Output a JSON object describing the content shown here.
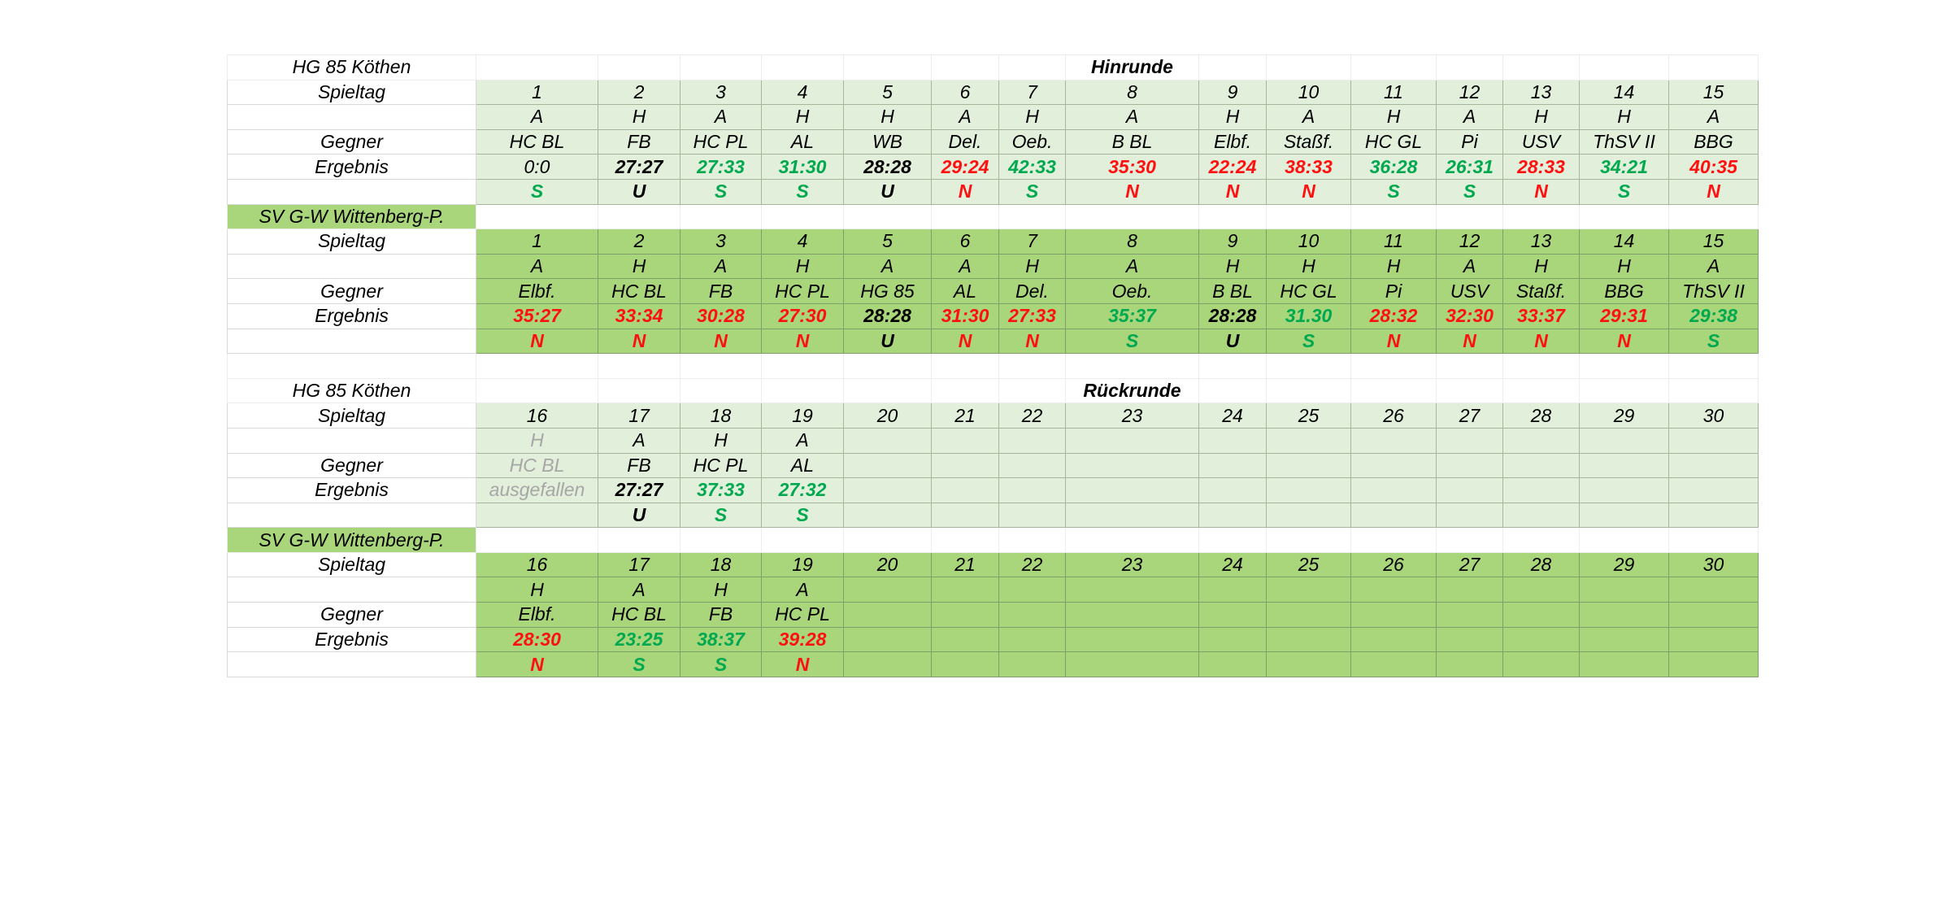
{
  "colors": {
    "light_green": "#e2efda",
    "dark_green": "#a9d67a",
    "win": "#00a84f",
    "loss": "#ff1010",
    "grey": "#a6a6a6"
  },
  "hinrunde": {
    "title": "Hinrunde",
    "team1": {
      "name": "HG 85 Köthen",
      "row_labels": {
        "spieltag": "Spieltag",
        "gegner": "Gegner",
        "ergebnis": "Ergebnis"
      },
      "spieltag": [
        "1",
        "2",
        "3",
        "4",
        "5",
        "6",
        "7",
        "8",
        "9",
        "10",
        "11",
        "12",
        "13",
        "14",
        "15"
      ],
      "ha": [
        "A",
        "H",
        "A",
        "H",
        "H",
        "A",
        "H",
        "A",
        "H",
        "A",
        "H",
        "A",
        "H",
        "H",
        "A"
      ],
      "gegner": [
        "HC BL",
        "FB",
        "HC PL",
        "AL",
        "WB",
        "Del.",
        "Oeb.",
        "B BL",
        "Elbf.",
        "Staßf.",
        "HC GL",
        "Pi",
        "USV",
        "ThSV II",
        "BBG"
      ],
      "ergebnis": [
        "0:0",
        "27:27",
        "27:33",
        "31:30",
        "28:28",
        "29:24",
        "42:33",
        "35:30",
        "22:24",
        "38:33",
        "36:28",
        "26:31",
        "28:33",
        "34:21",
        "40:35"
      ],
      "wertung": [
        "S",
        "U",
        "S",
        "S",
        "U",
        "N",
        "S",
        "N",
        "N",
        "N",
        "S",
        "S",
        "N",
        "S",
        "N"
      ]
    },
    "team2": {
      "name": "SV G-W Wittenberg-P.",
      "row_labels": {
        "spieltag": "Spieltag",
        "gegner": "Gegner",
        "ergebnis": "Ergebnis"
      },
      "spieltag": [
        "1",
        "2",
        "3",
        "4",
        "5",
        "6",
        "7",
        "8",
        "9",
        "10",
        "11",
        "12",
        "13",
        "14",
        "15"
      ],
      "ha": [
        "A",
        "H",
        "A",
        "H",
        "A",
        "A",
        "H",
        "A",
        "H",
        "H",
        "H",
        "A",
        "H",
        "H",
        "A"
      ],
      "gegner": [
        "Elbf.",
        "HC BL",
        "FB",
        "HC PL",
        "HG 85",
        "AL",
        "Del.",
        "Oeb.",
        "B BL",
        "HC GL",
        "Pi",
        "USV",
        "Staßf.",
        "BBG",
        "ThSV II"
      ],
      "ergebnis": [
        "35:27",
        "33:34",
        "30:28",
        "27:30",
        "28:28",
        "31:30",
        "27:33",
        "35:37",
        "28:28",
        "31.30",
        "28:32",
        "32:30",
        "33:37",
        "29:31",
        "29:38"
      ],
      "wertung": [
        "N",
        "N",
        "N",
        "N",
        "U",
        "N",
        "N",
        "S",
        "U",
        "S",
        "N",
        "N",
        "N",
        "N",
        "S"
      ]
    }
  },
  "rueckrunde": {
    "title": "Rückrunde",
    "team1": {
      "name": "HG 85 Köthen",
      "row_labels": {
        "spieltag": "Spieltag",
        "gegner": "Gegner",
        "ergebnis": "Ergebnis"
      },
      "spieltag": [
        "16",
        "17",
        "18",
        "19",
        "20",
        "21",
        "22",
        "23",
        "24",
        "25",
        "26",
        "27",
        "28",
        "29",
        "30"
      ],
      "ha": [
        "H",
        "A",
        "H",
        "A",
        "",
        "",
        "",
        "",
        "",
        "",
        "",
        "",
        "",
        "",
        ""
      ],
      "gegner": [
        "HC BL",
        "FB",
        "HC PL",
        "AL",
        "",
        "",
        "",
        "",
        "",
        "",
        "",
        "",
        "",
        "",
        ""
      ],
      "ergebnis": [
        "ausgefallen",
        "27:27",
        "37:33",
        "27:32",
        "",
        "",
        "",
        "",
        "",
        "",
        "",
        "",
        "",
        "",
        ""
      ],
      "wertung": [
        "",
        "U",
        "S",
        "S",
        "",
        "",
        "",
        "",
        "",
        "",
        "",
        "",
        "",
        "",
        ""
      ]
    },
    "team2": {
      "name": "SV G-W Wittenberg-P.",
      "row_labels": {
        "spieltag": "Spieltag",
        "gegner": "Gegner",
        "ergebnis": "Ergebnis"
      },
      "spieltag": [
        "16",
        "17",
        "18",
        "19",
        "20",
        "21",
        "22",
        "23",
        "24",
        "25",
        "26",
        "27",
        "28",
        "29",
        "30"
      ],
      "ha": [
        "H",
        "A",
        "H",
        "A",
        "",
        "",
        "",
        "",
        "",
        "",
        "",
        "",
        "",
        "",
        ""
      ],
      "gegner": [
        "Elbf.",
        "HC BL",
        "FB",
        "HC PL",
        "",
        "",
        "",
        "",
        "",
        "",
        "",
        "",
        "",
        "",
        ""
      ],
      "ergebnis": [
        "28:30",
        "23:25",
        "38:37",
        "39:28",
        "",
        "",
        "",
        "",
        "",
        "",
        "",
        "",
        "",
        "",
        ""
      ],
      "wertung": [
        "N",
        "S",
        "S",
        "N",
        "",
        "",
        "",
        "",
        "",
        "",
        "",
        "",
        "",
        "",
        ""
      ]
    }
  }
}
